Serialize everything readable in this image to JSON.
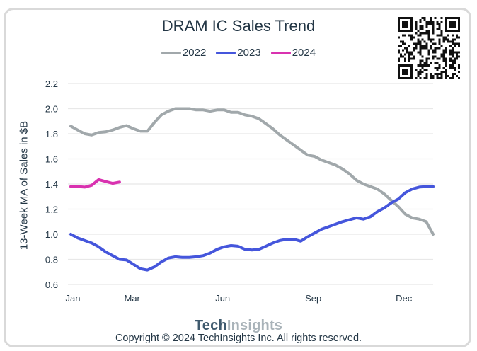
{
  "chart_data": {
    "type": "line",
    "title": "DRAM IC Sales Trend",
    "xlabel": "",
    "ylabel": "13-Week MA of Sales in $B",
    "ylim": [
      0.6,
      2.2
    ],
    "yticks": [
      "0.6",
      "0.8",
      "1.0",
      "1.2",
      "1.4",
      "1.6",
      "1.8",
      "2.0",
      "2.2"
    ],
    "ytick_values": [
      0.6,
      0.8,
      1.0,
      1.2,
      1.4,
      1.6,
      1.8,
      2.0,
      2.2
    ],
    "xticks": [
      {
        "label": "Jan",
        "week": 1
      },
      {
        "label": "Mar",
        "week": 9.5
      },
      {
        "label": "Jun",
        "week": 22.5
      },
      {
        "label": "Sep",
        "week": 35.5
      },
      {
        "label": "Dec",
        "week": 48.5
      }
    ],
    "xlim": [
      1,
      53
    ],
    "grid": true,
    "legend_position": "top-center",
    "series": [
      {
        "name": "2022",
        "color": "#a1a8ab",
        "values": [
          1.86,
          1.83,
          1.8,
          1.79,
          1.81,
          1.815,
          1.83,
          1.85,
          1.865,
          1.84,
          1.82,
          1.82,
          1.89,
          1.95,
          1.98,
          2.0,
          2.0,
          2.0,
          1.99,
          1.99,
          1.98,
          1.99,
          1.99,
          1.97,
          1.97,
          1.95,
          1.94,
          1.92,
          1.88,
          1.84,
          1.79,
          1.75,
          1.71,
          1.67,
          1.63,
          1.62,
          1.59,
          1.57,
          1.55,
          1.52,
          1.48,
          1.43,
          1.4,
          1.38,
          1.36,
          1.32,
          1.27,
          1.22,
          1.16,
          1.13,
          1.12,
          1.1,
          1.0
        ]
      },
      {
        "name": "2023",
        "color": "#4556dc",
        "values": [
          1.0,
          0.97,
          0.95,
          0.93,
          0.9,
          0.86,
          0.83,
          0.8,
          0.795,
          0.76,
          0.725,
          0.715,
          0.74,
          0.78,
          0.81,
          0.82,
          0.815,
          0.815,
          0.82,
          0.83,
          0.85,
          0.88,
          0.9,
          0.91,
          0.905,
          0.88,
          0.875,
          0.88,
          0.905,
          0.93,
          0.95,
          0.96,
          0.96,
          0.945,
          0.98,
          1.01,
          1.04,
          1.06,
          1.08,
          1.1,
          1.115,
          1.13,
          1.12,
          1.14,
          1.18,
          1.21,
          1.25,
          1.28,
          1.33,
          1.36,
          1.375,
          1.38,
          1.38
        ]
      },
      {
        "name": "2024",
        "color": "#d932b0",
        "values": [
          1.38,
          1.38,
          1.375,
          1.39,
          1.435,
          1.42,
          1.405,
          1.415
        ]
      }
    ]
  },
  "qr_code": "qr-code",
  "footer": {
    "logo_part1": "Tech",
    "logo_part2": "Insights",
    "copyright": "Copyright © 2024 TechInsights Inc.  All rights reserved."
  }
}
